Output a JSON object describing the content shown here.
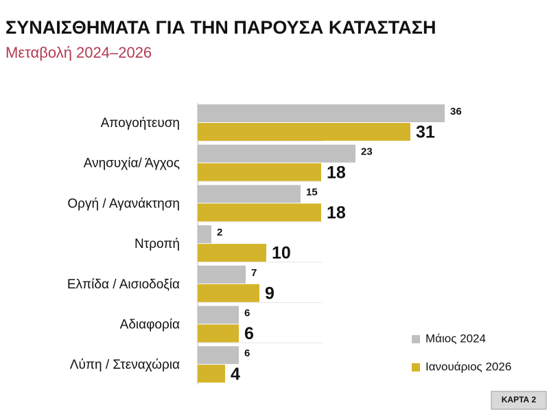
{
  "chart_data": {
    "type": "hbar",
    "title": "ΣΥΝΑΙΣΘΗΜΑΤΑ ΓΙΑ ΤΗΝ ΠΑΡΟΥΣΑ ΚΑΤΑΣΤΑΣΗ",
    "subtitle": "Μεταβολή 2024–2026",
    "categories": [
      "Απογοήτευση",
      "Ανησυχία/ Άγχος",
      "Οργή / Αγανάκτηση",
      "Ντροπή",
      "Ελπίδα / Αισιοδοξία",
      "Αδιαφορία",
      "Λύπη / Στεναχώρια"
    ],
    "series": [
      {
        "name": "Μάιος 2024",
        "color": "#c0c0c0",
        "values": [
          36,
          23,
          15,
          2,
          7,
          6,
          6
        ]
      },
      {
        "name": "Ιανουάριος 2026",
        "color": "#d4b42a",
        "values": [
          31,
          18,
          18,
          10,
          9,
          6,
          4
        ]
      }
    ],
    "legend": "bottom-right"
  },
  "badge": "ΚΑΡΤΑ 2"
}
